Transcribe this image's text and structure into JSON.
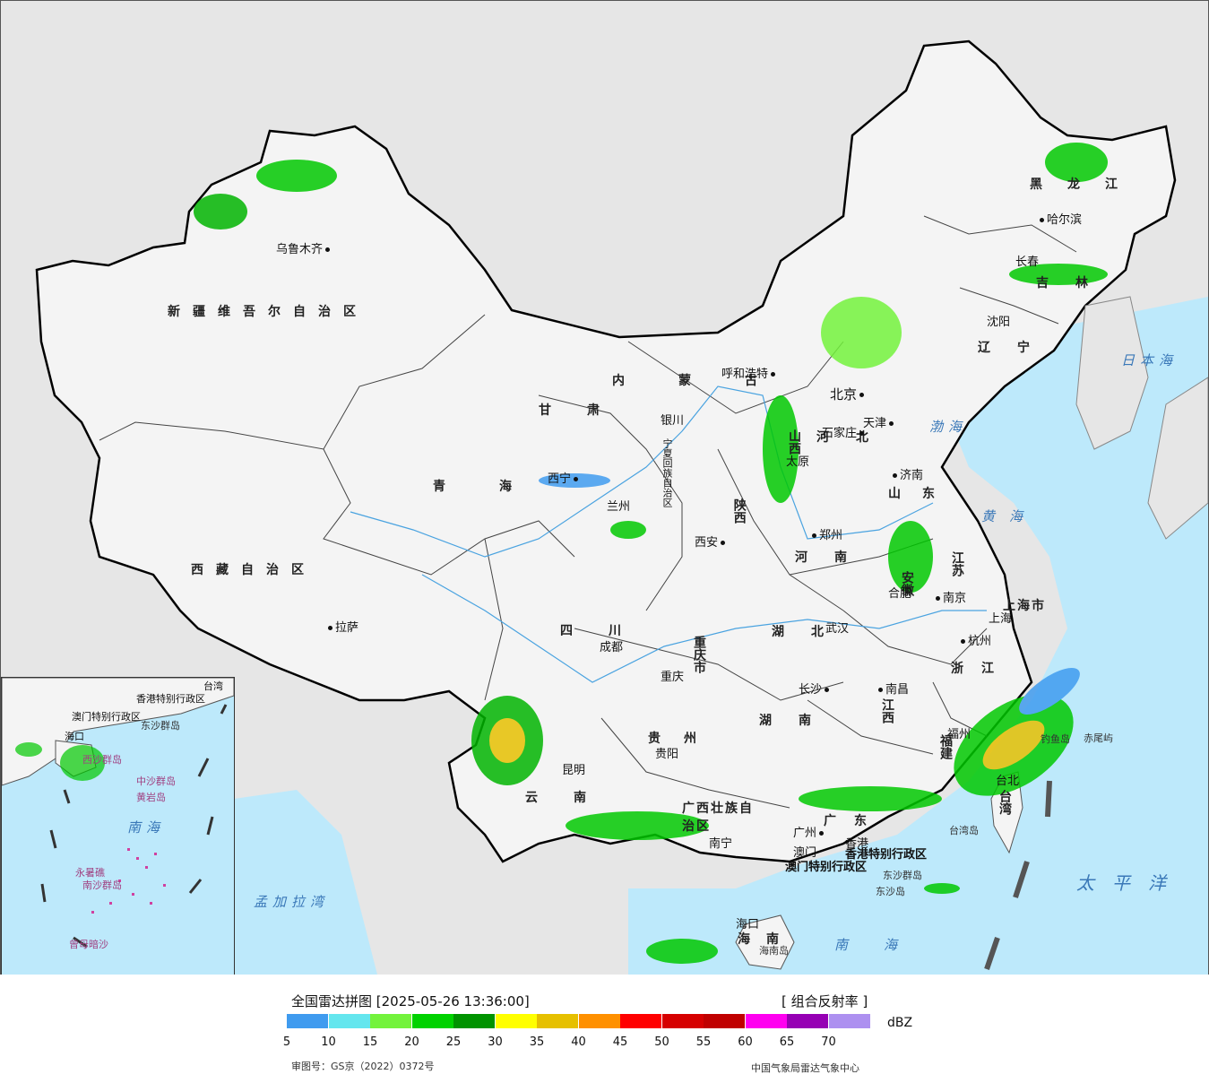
{
  "cities": [
    {
      "name": "乌鲁木齐"
    },
    {
      "name": "呼和浩特"
    },
    {
      "name": "北京"
    },
    {
      "name": "天津"
    },
    {
      "name": "石家庄"
    },
    {
      "name": "太原"
    },
    {
      "name": "济南"
    },
    {
      "name": "银川"
    },
    {
      "name": "西宁"
    },
    {
      "name": "兰州"
    },
    {
      "name": "西安"
    },
    {
      "name": "郑州"
    },
    {
      "name": "合肥"
    },
    {
      "name": "南京"
    },
    {
      "name": "上海"
    },
    {
      "name": "杭州"
    },
    {
      "name": "武汉"
    },
    {
      "name": "成都"
    },
    {
      "name": "重庆"
    },
    {
      "name": "拉萨"
    },
    {
      "name": "长沙"
    },
    {
      "name": "南昌"
    },
    {
      "name": "福州"
    },
    {
      "name": "贵阳"
    },
    {
      "name": "昆明"
    },
    {
      "name": "南宁"
    },
    {
      "name": "广州"
    },
    {
      "name": "澳门"
    },
    {
      "name": "香港"
    },
    {
      "name": "台北"
    },
    {
      "name": "海口"
    },
    {
      "name": "沈阳"
    },
    {
      "name": "长春"
    },
    {
      "name": "哈尔滨"
    }
  ],
  "provinces": [
    {
      "name": "新疆维吾尔自治区"
    },
    {
      "name": "西藏自治区"
    },
    {
      "name": "青海"
    },
    {
      "name": "甘肃"
    },
    {
      "name": "四川"
    },
    {
      "name": "云南"
    },
    {
      "name": "内蒙古"
    },
    {
      "name": "黑龙江"
    },
    {
      "name": "吉林"
    },
    {
      "name": "辽宁"
    },
    {
      "name": "河北"
    },
    {
      "name": "山西"
    },
    {
      "name": "陕西"
    },
    {
      "name": "河南"
    },
    {
      "name": "山东"
    },
    {
      "name": "江苏"
    },
    {
      "name": "安徽"
    },
    {
      "name": "湖北"
    },
    {
      "name": "湖南"
    },
    {
      "name": "江西"
    },
    {
      "name": "浙江"
    },
    {
      "name": "福建"
    },
    {
      "name": "广东"
    },
    {
      "name": "贵州"
    },
    {
      "name": "重庆市"
    },
    {
      "name": "上海市"
    },
    {
      "name": "广西壮族自治区"
    },
    {
      "name": "海南"
    },
    {
      "name": "台湾"
    },
    {
      "name": "宁夏回族自治区"
    },
    {
      "name": "香港特别行政区"
    },
    {
      "name": "澳门特别行政区"
    }
  ],
  "seas": [
    {
      "name": "渤海"
    },
    {
      "name": "黄海"
    },
    {
      "name": "日本海"
    },
    {
      "name": "太平洋"
    },
    {
      "name": "南海"
    },
    {
      "name": "孟加拉湾"
    }
  ],
  "islands": [
    {
      "name": "台湾岛"
    },
    {
      "name": "东沙群岛"
    },
    {
      "name": "东沙岛"
    },
    {
      "name": "赤尾屿"
    },
    {
      "name": "钓鱼岛"
    },
    {
      "name": "海南岛"
    }
  ],
  "inset": {
    "labels": [
      {
        "name": "南海"
      },
      {
        "name": "中沙群岛"
      },
      {
        "name": "南沙群岛"
      },
      {
        "name": "西沙群岛"
      },
      {
        "name": "黄岩岛"
      },
      {
        "name": "永暑礁"
      },
      {
        "name": "曾母暗沙"
      },
      {
        "name": "香港特别行政区"
      },
      {
        "name": "澳门特别行政区"
      },
      {
        "name": "台湾"
      },
      {
        "name": "海口"
      },
      {
        "name": "东沙群岛"
      }
    ]
  },
  "legend": {
    "title": "全国雷达拼图 [2025-05-26 13:36:00]",
    "product": "[ 组合反射率 ]",
    "unit": "dBZ",
    "ticks": [
      "5",
      "10",
      "15",
      "20",
      "25",
      "30",
      "35",
      "40",
      "45",
      "50",
      "55",
      "60",
      "65",
      "70"
    ],
    "colors": [
      "#3f9bef",
      "#64e6ee",
      "#73f33c",
      "#00d200",
      "#009300",
      "#ffff00",
      "#e6c000",
      "#ff9000",
      "#ff0000",
      "#d60000",
      "#c00000",
      "#ff00f0",
      "#9600b4",
      "#ad90f0"
    ]
  },
  "footer": {
    "approval": "审图号：GS京（2022）0372号",
    "source": "中国气象局雷达气象中心"
  }
}
